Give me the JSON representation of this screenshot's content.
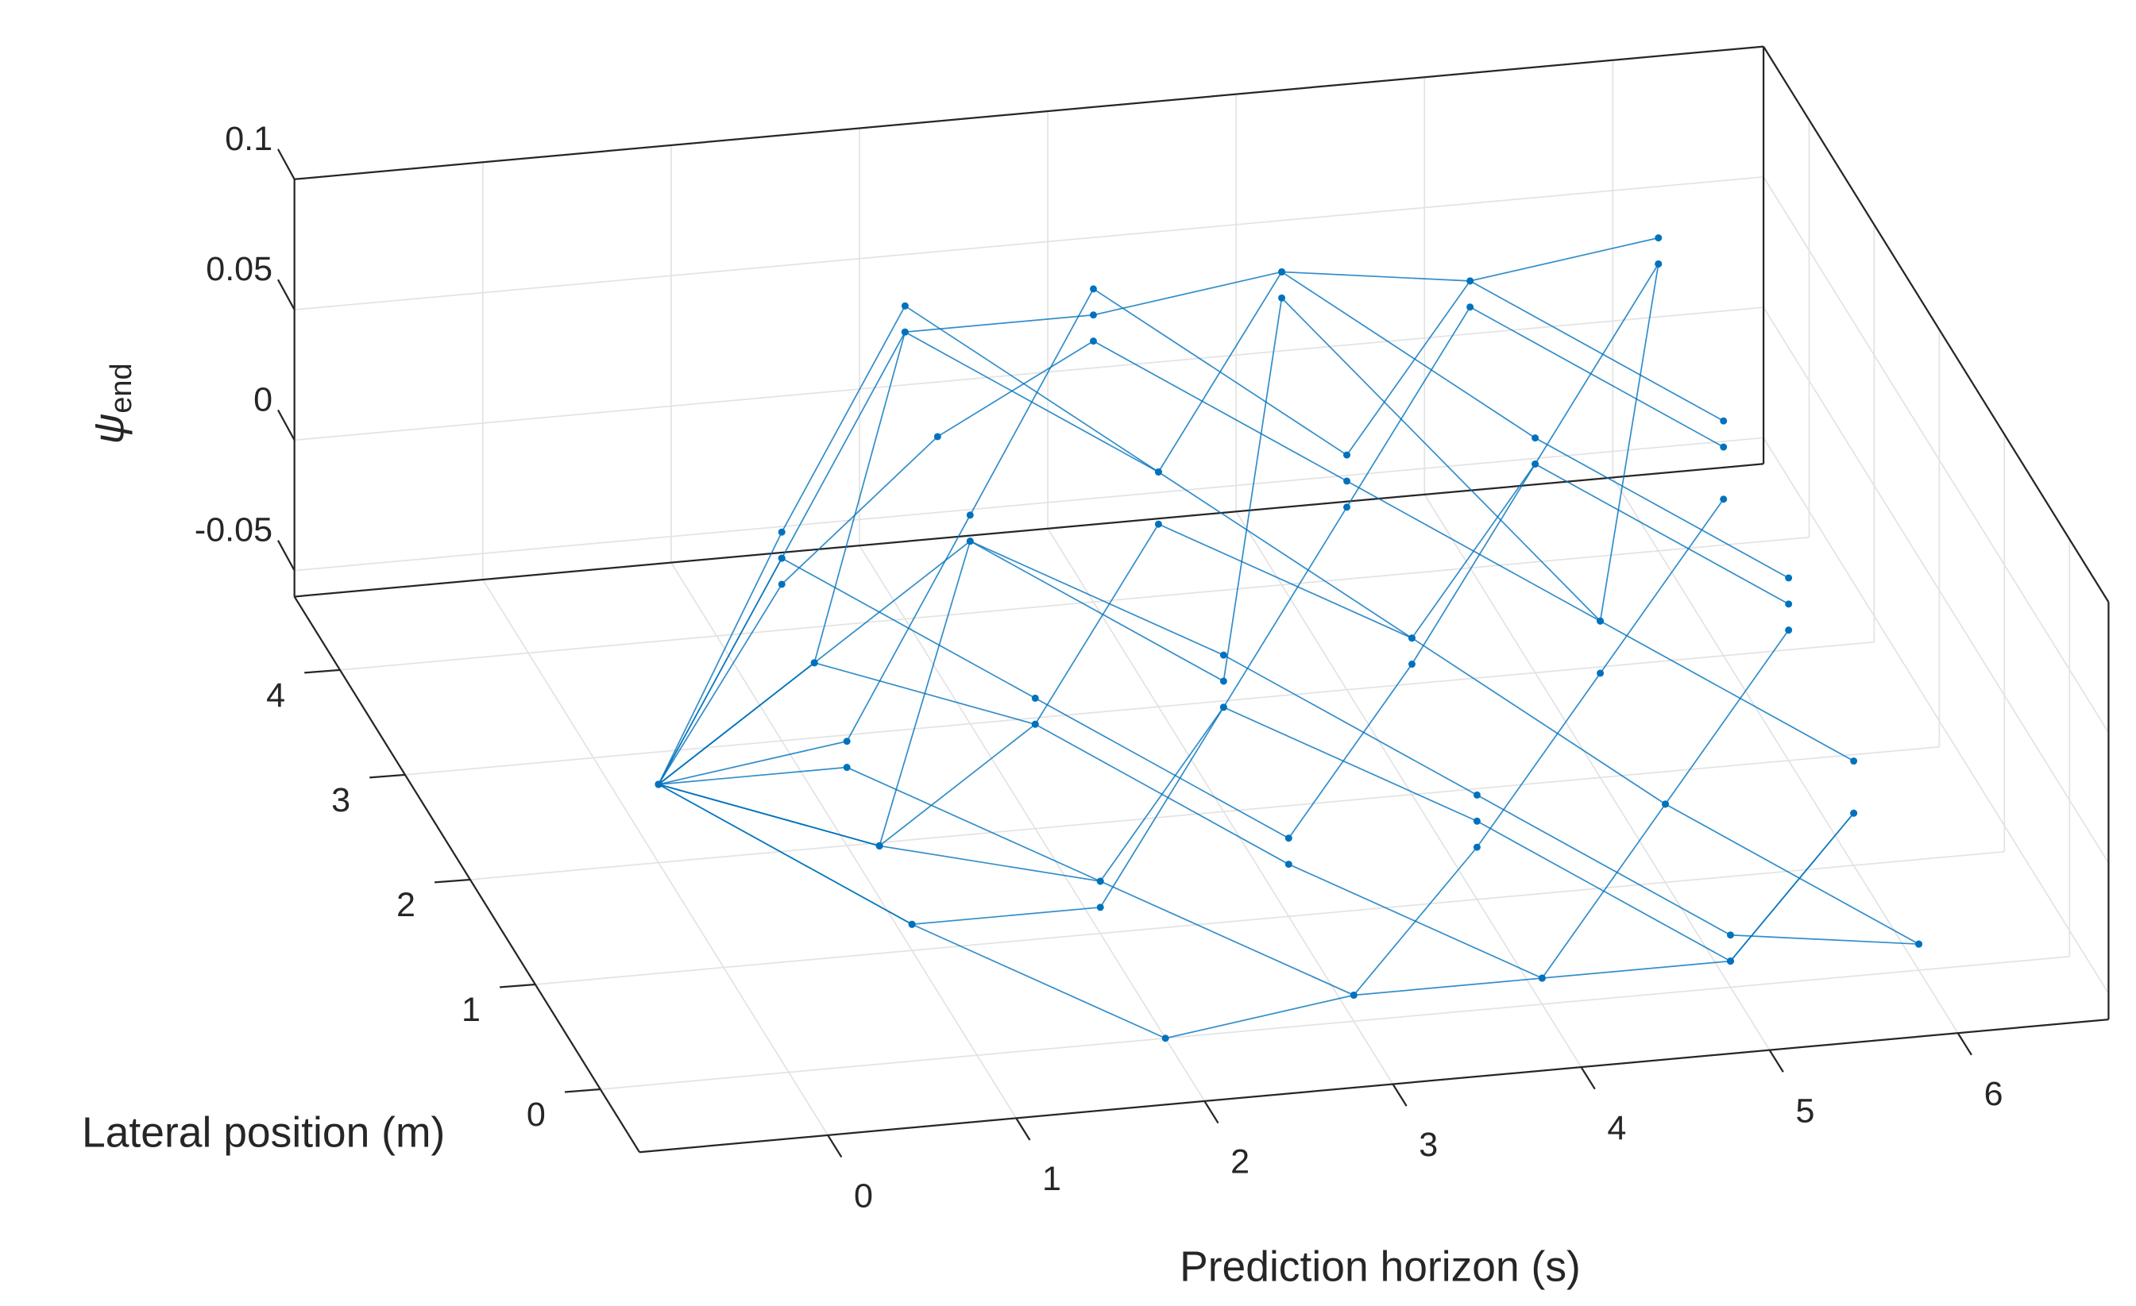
{
  "chart_data": {
    "type": "line3d",
    "xlabel": "Prediction horizon (s)",
    "ylabel": "Lateral position (m)",
    "zlabel": "ψ",
    "zlabel_subscript": "end",
    "xlim": [
      -1,
      6.8
    ],
    "ylim": [
      -0.6,
      4.7
    ],
    "zlim": [
      -0.06,
      0.1
    ],
    "xticks": [
      0,
      1,
      2,
      3,
      4,
      5,
      6
    ],
    "yticks": [
      0,
      1,
      2,
      3,
      4
    ],
    "zticks": [
      -0.05,
      0,
      0.05,
      0.1
    ],
    "grid": true,
    "color": "#0072bd",
    "series": [
      {
        "x": [
          0,
          1,
          2,
          3,
          4,
          5,
          6
        ],
        "y": [
          2,
          3,
          4,
          4,
          4,
          4,
          4
        ],
        "z": [
          -0.03,
          0.01,
          0.05,
          0.05,
          0.06,
          0.05,
          0.06
        ]
      },
      {
        "x": [
          0,
          1,
          2,
          3,
          4,
          5,
          6
        ],
        "y": [
          2,
          3,
          3.5,
          4,
          3,
          2,
          1
        ],
        "z": [
          -0.03,
          0.0,
          0.03,
          0.04,
          0.02,
          0.0,
          -0.02
        ]
      },
      {
        "x": [
          0,
          1,
          2,
          3,
          4,
          5,
          6
        ],
        "y": [
          2,
          2.5,
          3,
          2,
          1,
          0,
          0
        ],
        "z": [
          -0.03,
          -0.01,
          0.01,
          0.0,
          -0.02,
          -0.04,
          -0.05
        ]
      },
      {
        "x": [
          0,
          1,
          2,
          3,
          4,
          5,
          6
        ],
        "y": [
          2,
          2,
          1,
          0,
          0,
          1,
          2
        ],
        "z": [
          -0.03,
          -0.03,
          -0.04,
          -0.05,
          -0.05,
          -0.03,
          -0.01
        ]
      },
      {
        "x": [
          0,
          1,
          2,
          3,
          4,
          5,
          6
        ],
        "y": [
          2,
          1.5,
          1,
          2,
          3,
          4,
          3
        ],
        "z": [
          -0.03,
          -0.04,
          -0.04,
          -0.02,
          0.01,
          0.04,
          0.02
        ]
      },
      {
        "x": [
          0,
          1,
          2,
          3,
          4,
          5,
          6
        ],
        "y": [
          2,
          1,
          0,
          0,
          1,
          2,
          3
        ],
        "z": [
          -0.03,
          -0.05,
          -0.06,
          -0.05,
          -0.04,
          -0.02,
          0.0
        ]
      },
      {
        "x": [
          0,
          1,
          2,
          3,
          4,
          5,
          6
        ],
        "y": [
          2,
          3,
          2,
          1,
          2,
          3,
          4
        ],
        "z": [
          -0.03,
          0.01,
          -0.01,
          -0.03,
          -0.01,
          0.02,
          0.05
        ]
      },
      {
        "x": [
          0,
          1,
          2,
          3,
          4,
          5,
          6
        ],
        "y": [
          2,
          2.5,
          4,
          3,
          4,
          3,
          2
        ],
        "z": [
          -0.03,
          -0.01,
          0.05,
          0.03,
          0.06,
          0.03,
          0.01
        ]
      },
      {
        "x": [
          0,
          1,
          2,
          3,
          4,
          5,
          6
        ],
        "y": [
          2,
          1.5,
          2,
          3,
          2,
          1,
          0
        ],
        "z": [
          -0.03,
          -0.04,
          -0.02,
          0.01,
          0.0,
          -0.03,
          -0.05
        ]
      },
      {
        "x": [
          0,
          1,
          2,
          3,
          4,
          5,
          6
        ],
        "y": [
          2,
          2,
          3,
          4,
          3,
          4,
          3
        ],
        "z": [
          -0.03,
          -0.02,
          0.02,
          0.06,
          0.03,
          0.05,
          0.03
        ]
      },
      {
        "x": [
          0,
          1,
          2,
          3,
          4,
          5,
          6
        ],
        "y": [
          2,
          1,
          1,
          2,
          1,
          0,
          1
        ],
        "z": [
          -0.03,
          -0.05,
          -0.05,
          -0.02,
          -0.03,
          -0.05,
          -0.04
        ]
      },
      {
        "x": [
          0,
          1,
          2,
          3,
          4,
          5,
          6
        ],
        "y": [
          2,
          3,
          4,
          3,
          2,
          3,
          2
        ],
        "z": [
          -0.03,
          0.02,
          0.06,
          0.03,
          0.0,
          0.02,
          0.0
        ]
      },
      {
        "x": [
          0,
          1,
          2,
          3,
          4,
          5,
          6
        ],
        "y": [
          2,
          2.5,
          2,
          1,
          0,
          0,
          1
        ],
        "z": [
          -0.03,
          -0.01,
          -0.02,
          -0.04,
          -0.05,
          -0.05,
          -0.04
        ]
      },
      {
        "x": [
          0,
          1,
          2,
          3,
          4,
          5,
          6
        ],
        "y": [
          2,
          1.5,
          3,
          2,
          4,
          2,
          4
        ],
        "z": [
          -0.03,
          -0.04,
          0.01,
          -0.01,
          0.05,
          0.0,
          0.05
        ]
      }
    ]
  }
}
